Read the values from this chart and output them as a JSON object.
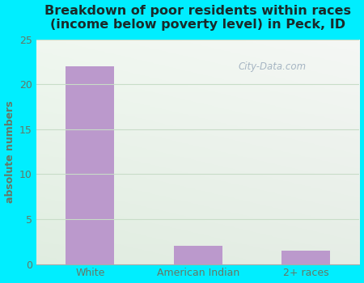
{
  "title": "Breakdown of poor residents within races\n(income below poverty level) in Peck, ID",
  "categories": [
    "White",
    "American Indian",
    "2+ races"
  ],
  "values": [
    22,
    2,
    1.5
  ],
  "bar_color": "#bb99cc",
  "ylabel": "absolute numbers",
  "ylim": [
    0,
    25
  ],
  "yticks": [
    0,
    5,
    10,
    15,
    20,
    25
  ],
  "background_outer": "#00eeff",
  "background_inner_tl": "#e8f5e8",
  "background_inner_br": "#d8eef0",
  "title_color": "#1a2a2a",
  "axis_label_color": "#667766",
  "tick_label_color": "#667766",
  "grid_color": "#c8ddc8",
  "watermark": "City-Data.com",
  "title_fontsize": 11.5,
  "ylabel_fontsize": 9,
  "tick_fontsize": 9
}
